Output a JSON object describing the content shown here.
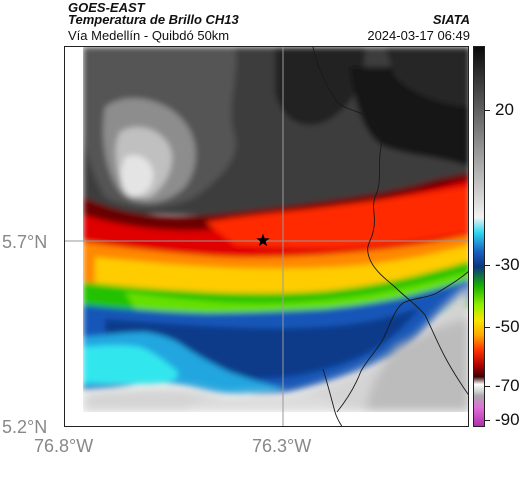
{
  "header": {
    "satellite": "GOES-EAST",
    "product": "Temperatura de Brillo CH13",
    "route": "Vía Medellín - Quibdó 50km",
    "organization": "SIATA",
    "timestamp": "2024-03-17 06:49"
  },
  "map": {
    "lat_labels": [
      "5.7°N",
      "5.2°N"
    ],
    "lon_labels": [
      "76.8°W",
      "76.3°W"
    ],
    "marker_icon": "star-icon"
  },
  "colorbar": {
    "labels": [
      "20",
      "-30",
      "-50",
      "-70",
      "-90"
    ]
  }
}
